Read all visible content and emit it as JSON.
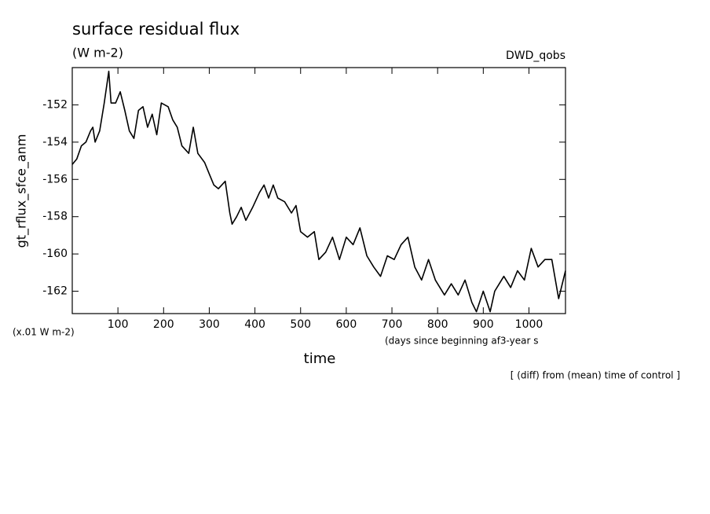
{
  "chart_data": {
    "type": "line",
    "title": "surface residual flux",
    "subtitle": "(W m-2)",
    "source": "DWD_qobs",
    "ylabel": "gt_rflux_sfce_anm",
    "yunit": "(x.01 W m-2)",
    "xunit": "(days since beginning af3-year s",
    "xlabel": "time",
    "footnote": "[ (diff) from (mean) time of control ]",
    "xlim": [
      0,
      1080
    ],
    "ylim": [
      -163.2,
      -150
    ],
    "xticks": [
      100,
      200,
      300,
      400,
      500,
      600,
      700,
      800,
      900,
      1000
    ],
    "yticks": [
      -152,
      -154,
      -156,
      -158,
      -160,
      -162
    ],
    "color": "#000000",
    "x": [
      0,
      10,
      20,
      30,
      40,
      45,
      50,
      60,
      70,
      80,
      85,
      95,
      105,
      115,
      125,
      135,
      145,
      155,
      165,
      175,
      185,
      195,
      210,
      220,
      230,
      240,
      255,
      265,
      275,
      290,
      300,
      310,
      320,
      335,
      345,
      350,
      360,
      370,
      380,
      395,
      410,
      420,
      430,
      440,
      450,
      465,
      480,
      490,
      500,
      515,
      530,
      540,
      555,
      570,
      585,
      600,
      615,
      630,
      645,
      660,
      675,
      690,
      705,
      720,
      735,
      750,
      765,
      780,
      795,
      815,
      830,
      845,
      860,
      875,
      885,
      900,
      915,
      925,
      945,
      960,
      975,
      990,
      1005,
      1020,
      1035,
      1050,
      1065,
      1080
    ],
    "values": [
      -155.2,
      -154.9,
      -154.2,
      -154.0,
      -153.4,
      -153.2,
      -154.0,
      -153.4,
      -151.9,
      -150.2,
      -151.9,
      -151.9,
      -151.3,
      -152.3,
      -153.4,
      -153.8,
      -152.3,
      -152.1,
      -153.2,
      -152.5,
      -153.6,
      -151.9,
      -152.1,
      -152.8,
      -153.2,
      -154.2,
      -154.6,
      -153.2,
      -154.6,
      -155.1,
      -155.7,
      -156.3,
      -156.5,
      -156.1,
      -157.8,
      -158.4,
      -158.0,
      -157.5,
      -158.2,
      -157.5,
      -156.7,
      -156.3,
      -157.0,
      -156.3,
      -157.0,
      -157.2,
      -157.8,
      -157.4,
      -158.8,
      -159.1,
      -158.8,
      -160.3,
      -159.9,
      -159.1,
      -160.3,
      -159.1,
      -159.5,
      -158.6,
      -160.1,
      -160.7,
      -161.2,
      -160.1,
      -160.3,
      -159.5,
      -159.1,
      -160.7,
      -161.4,
      -160.3,
      -161.4,
      -162.2,
      -161.6,
      -162.2,
      -161.4,
      -162.6,
      -163.1,
      -162.0,
      -163.1,
      -162.0,
      -161.2,
      -161.8,
      -160.9,
      -161.4,
      -159.7,
      -160.7,
      -160.3,
      -160.3,
      -162.4,
      -160.9
    ]
  }
}
